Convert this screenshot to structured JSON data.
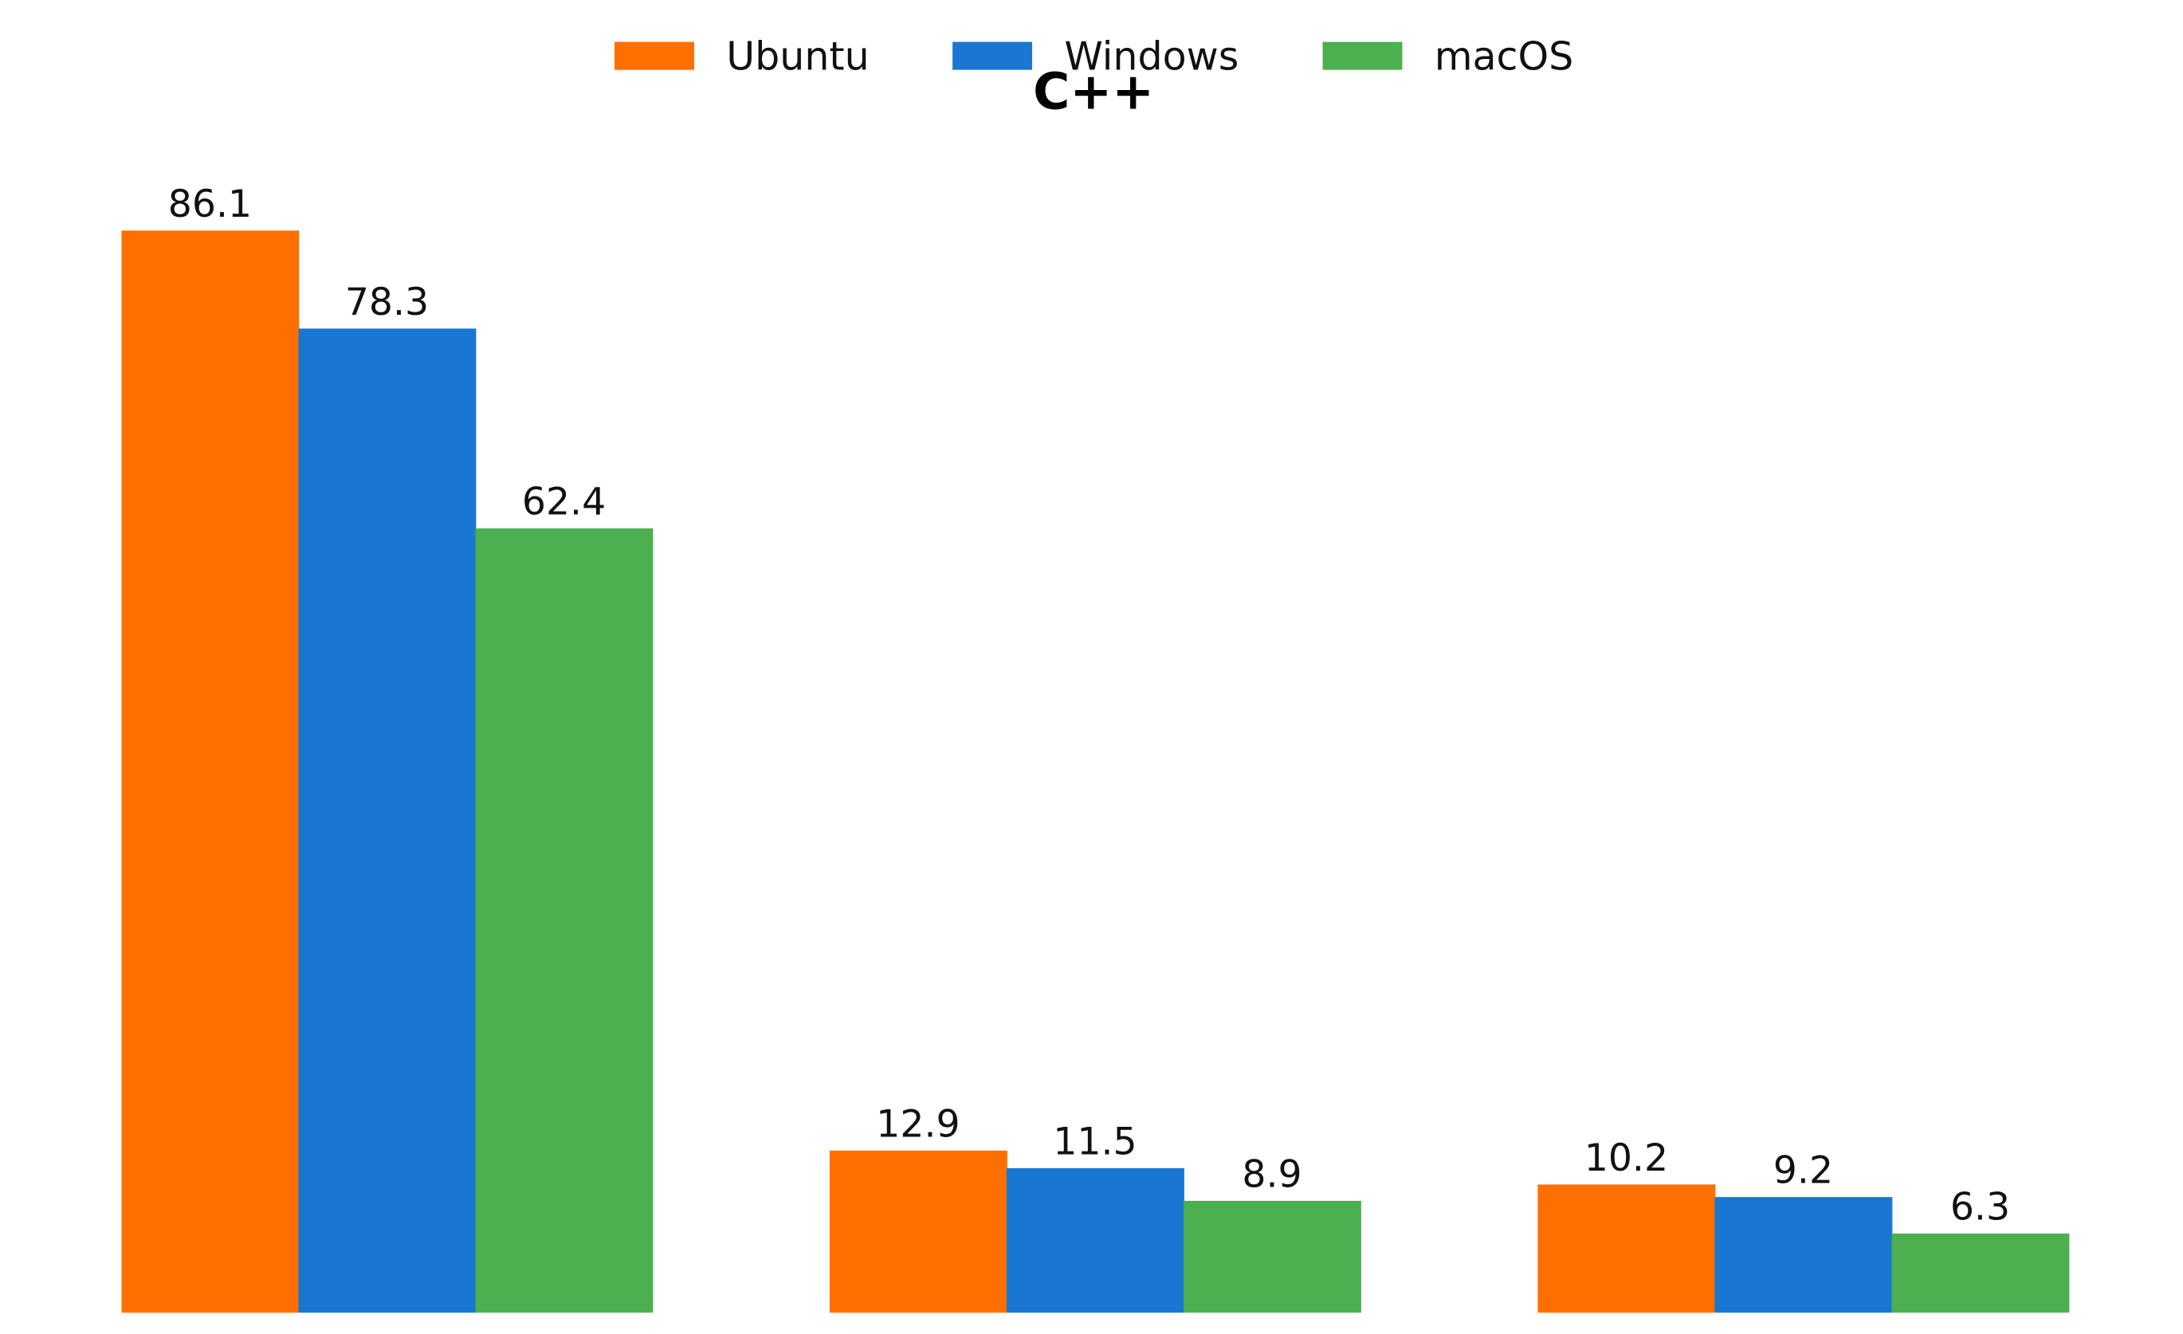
{
  "chart_data": {
    "type": "bar",
    "title": "C++",
    "categories": [
      "",
      "",
      ""
    ],
    "series": [
      {
        "name": "Ubuntu",
        "color": "#FF6F00",
        "values": [
          86.1,
          12.9,
          10.2
        ]
      },
      {
        "name": "Windows",
        "color": "#1976D2",
        "values": [
          78.3,
          11.5,
          9.2
        ]
      },
      {
        "name": "macOS",
        "color": "#4CAF50",
        "values": [
          62.4,
          8.9,
          6.3
        ]
      }
    ],
    "ylim": [
      0,
      95
    ],
    "grid": false,
    "legend": "top-center",
    "xlabel": "",
    "ylabel": ""
  }
}
